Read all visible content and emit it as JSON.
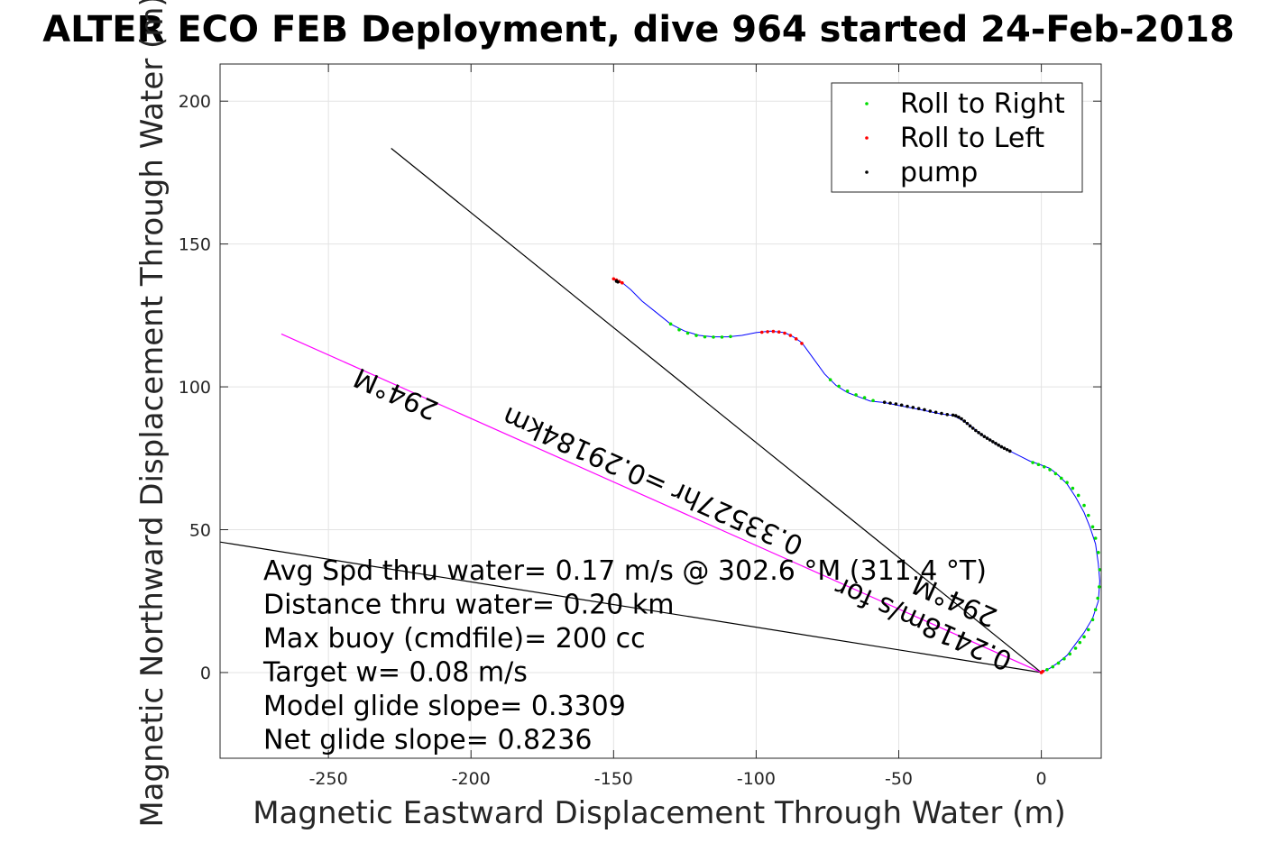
{
  "chart_data": {
    "type": "line",
    "title": "ALTER ECO FEB Deployment, dive 964 started 24-Feb-2018",
    "xlabel": "Magnetic Eastward Displacement Through Water (m)",
    "ylabel": "Magnetic Northward Displacement Through Water (m)",
    "xlim": [
      -288,
      21
    ],
    "ylim": [
      -30,
      213
    ],
    "xticks": [
      -250,
      -200,
      -150,
      -100,
      -50,
      0
    ],
    "yticks": [
      0,
      50,
      100,
      150,
      200
    ],
    "grid": true,
    "legend_position": "top-right",
    "legend": [
      {
        "label": "Roll to Right",
        "color": "#00dd00"
      },
      {
        "label": "Roll to Left",
        "color": "#ff0000"
      },
      {
        "label": "pump",
        "color": "#000000"
      }
    ],
    "track": {
      "color": "#0000ff",
      "x": [
        -150,
        -147,
        -144,
        -140,
        -135,
        -130,
        -125,
        -120,
        -115,
        -110,
        -105,
        -100,
        -95,
        -90,
        -87,
        -84,
        -80,
        -76,
        -72,
        -68,
        -64,
        -60,
        -55,
        -50,
        -45,
        -40,
        -35,
        -31,
        -28,
        -25,
        -22,
        -19,
        -16,
        -13,
        -10,
        -7,
        -4,
        -1,
        3,
        6,
        9,
        12,
        15,
        17,
        19,
        20,
        20.5,
        20,
        18,
        15,
        12,
        9,
        6,
        3,
        0.5,
        0
      ],
      "y": [
        137.5,
        136.5,
        134,
        130,
        126,
        122,
        119.5,
        118,
        117.5,
        117.5,
        118,
        119,
        119.5,
        119,
        117.5,
        115.5,
        110,
        104.5,
        100.5,
        98,
        96.5,
        95,
        94.5,
        93.5,
        92.5,
        91.5,
        90.5,
        90,
        88.5,
        86.5,
        84,
        82,
        80,
        78.5,
        77,
        75.5,
        74,
        73,
        71.5,
        69,
        66,
        61.5,
        56,
        51,
        45,
        38,
        32,
        25,
        19,
        14,
        10,
        6,
        3.5,
        1.5,
        0.3,
        0
      ]
    },
    "roll_right_points": {
      "x": [
        -130,
        -127,
        -124,
        -121,
        -118,
        -115,
        -112,
        -109,
        -74,
        -71,
        -68,
        -65,
        -62,
        -59,
        -3,
        -1,
        1,
        3,
        5,
        7,
        9,
        11,
        13,
        15,
        16.5,
        18,
        19,
        20,
        20.5,
        20.3,
        19.8,
        19,
        18,
        16.5,
        15,
        13.5,
        12,
        10,
        8,
        6,
        4,
        2
      ],
      "y": [
        122,
        120,
        118.8,
        118,
        117.5,
        117.4,
        117.4,
        117.6,
        102.5,
        100.2,
        98.5,
        97.2,
        96.2,
        95.2,
        73.5,
        72.8,
        72,
        71,
        69.6,
        68,
        66.5,
        64.5,
        62,
        58.5,
        55,
        51,
        47,
        42,
        36,
        30,
        26,
        22,
        18.5,
        15,
        12.5,
        10.5,
        8.5,
        6.5,
        4.8,
        3.3,
        2,
        1
      ]
    },
    "roll_left_points": {
      "x": [
        -150,
        -149,
        -148,
        -147,
        -98,
        -96,
        -94,
        -92,
        -90,
        -88,
        -86,
        -84,
        0.5,
        0
      ],
      "y": [
        137.8,
        137.4,
        136.9,
        136.4,
        119.1,
        119.3,
        119.4,
        119.2,
        118.8,
        118,
        116.8,
        115.2,
        0.4,
        0
      ]
    },
    "pump_points": {
      "x": [
        -149,
        -148.5,
        -55,
        -53,
        -51,
        -49,
        -47,
        -45,
        -43,
        -41,
        -39,
        -37,
        -35,
        -33,
        -31,
        -30,
        -29,
        -28,
        -27,
        -26,
        -25,
        -24,
        -23,
        -22,
        -21,
        -20,
        -19,
        -18,
        -17,
        -16,
        -15,
        -14,
        -13,
        -12,
        -11
      ],
      "y": [
        137,
        136.7,
        94.6,
        94.3,
        94,
        93.6,
        93.2,
        92.8,
        92.4,
        92,
        91.5,
        91.1,
        90.7,
        90.3,
        90.1,
        89.9,
        89.4,
        88.8,
        88,
        87.2,
        86.3,
        85.5,
        84.7,
        84,
        83.3,
        82.6,
        82,
        81.4,
        80.8,
        80.2,
        79.6,
        79,
        78.5,
        78,
        77.5
      ]
    },
    "reference_lines": [
      {
        "x": [
          0,
          -228
        ],
        "y": [
          0,
          183.5
        ],
        "color": "#000000"
      },
      {
        "x": [
          0,
          -290
        ],
        "y": [
          0,
          46
        ],
        "color": "#000000"
      },
      {
        "x": [
          0,
          -266.5
        ],
        "y": [
          0,
          118.5
        ],
        "color": "#ff00ff"
      }
    ],
    "line_annotations": [
      {
        "text": "294°M",
        "x": -225,
        "y": 100.5
      },
      {
        "text": "0.33527hr =0.29184km",
        "x": -135,
        "y": 70
      },
      {
        "text": "294°M",
        "x": -29,
        "y": 28
      },
      {
        "text": "0.2418m/s for",
        "x": -40,
        "y": 20
      }
    ],
    "notes": [
      "Avg Spd thru water=  0.17 m/s @ 302.6 °M (311.4 °T)",
      "Distance thru water=  0.20 km",
      "Max buoy (cmdfile)= 200 cc",
      "Target w= 0.08 m/s",
      "Model glide slope= 0.3309",
      "Net glide slope= 0.8236"
    ]
  }
}
